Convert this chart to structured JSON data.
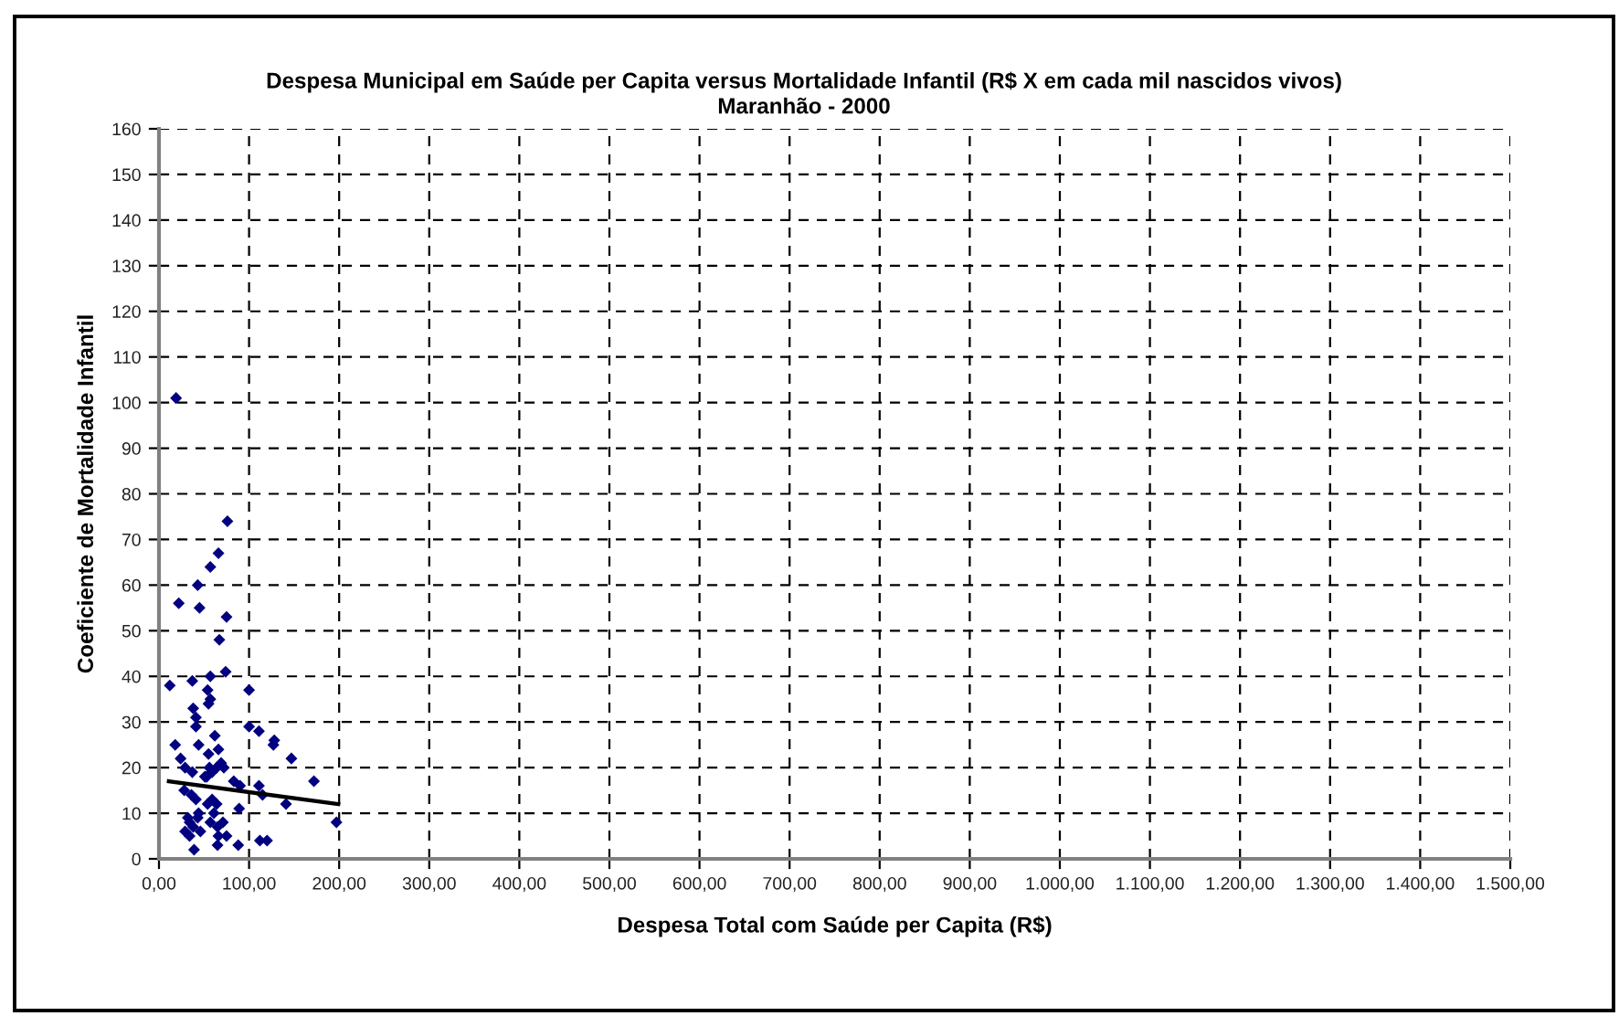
{
  "chart_data": {
    "type": "scatter",
    "title": "Despesa Municipal em Saúde per Capita versus Mortalidade Infantil (R$ X em cada mil nascidos vivos)",
    "subtitle": "Maranhão - 2000",
    "xlabel": "Despesa Total com Saúde per Capita (R$)",
    "ylabel": "Coeficiente de Mortalidade Infantil",
    "series": [
      {
        "color": "#000080",
        "x": [
          19,
          76,
          66,
          57,
          43,
          22,
          45,
          75,
          67,
          74,
          12,
          37,
          57,
          54,
          100,
          57,
          55,
          38,
          41,
          41,
          100,
          111,
          62,
          128,
          127,
          18,
          44,
          66,
          55,
          24,
          147,
          29,
          69,
          64,
          72,
          56,
          37,
          53,
          59,
          51,
          172,
          28,
          83,
          90,
          36,
          111,
          115,
          41,
          59,
          64,
          141,
          54,
          89,
          61,
          44,
          32,
          43,
          57,
          71,
          197,
          34,
          38,
          65,
          29,
          46,
          75,
          34,
          66,
          112,
          120,
          88,
          65,
          39
        ],
        "values": [
          101,
          74,
          67,
          64,
          60,
          56,
          55,
          53,
          48,
          41,
          38,
          39,
          40,
          37,
          37,
          35,
          34,
          33,
          31,
          29,
          29,
          28,
          27,
          26,
          25,
          25,
          25,
          24,
          23,
          22,
          22,
          20,
          21,
          20,
          20,
          20,
          19,
          18,
          19,
          18,
          17,
          15,
          17,
          16,
          14,
          16,
          14,
          13,
          13,
          12,
          12,
          12,
          11,
          10,
          10,
          9,
          9,
          8,
          8,
          8,
          8,
          7,
          7,
          6,
          6,
          5,
          5,
          5,
          4,
          4,
          3,
          3,
          2
        ]
      },
      {
        "type": "line",
        "color": "#000000",
        "marker": "none",
        "x": [
          11,
          199
        ],
        "values": [
          17,
          12
        ]
      }
    ],
    "xlim": [
      0,
      1500
    ],
    "xticks": [
      {
        "value": 0,
        "label": "0,00"
      },
      {
        "value": 100,
        "label": "100,00"
      },
      {
        "value": 200,
        "label": "200,00"
      },
      {
        "value": 300,
        "label": "300,00"
      },
      {
        "value": 400,
        "label": "400,00"
      },
      {
        "value": 500,
        "label": "500,00"
      },
      {
        "value": 600,
        "label": "600,00"
      },
      {
        "value": 700,
        "label": "700,00"
      },
      {
        "value": 800,
        "label": "800,00"
      },
      {
        "value": 900,
        "label": "900,00"
      },
      {
        "value": 1000,
        "label": "1.000,00"
      },
      {
        "value": 1100,
        "label": "1.100,00"
      },
      {
        "value": 1200,
        "label": "1.200,00"
      },
      {
        "value": 1300,
        "label": "1.300,00"
      },
      {
        "value": 1400,
        "label": "1.400,00"
      },
      {
        "value": 1500,
        "label": "1.500,00"
      }
    ],
    "ylim": [
      0,
      160
    ],
    "yticks": [
      0,
      10,
      20,
      30,
      40,
      50,
      60,
      70,
      80,
      90,
      100,
      110,
      120,
      130,
      140,
      150,
      160
    ],
    "grid": true,
    "marker": "diamond",
    "line_style": "solid"
  }
}
